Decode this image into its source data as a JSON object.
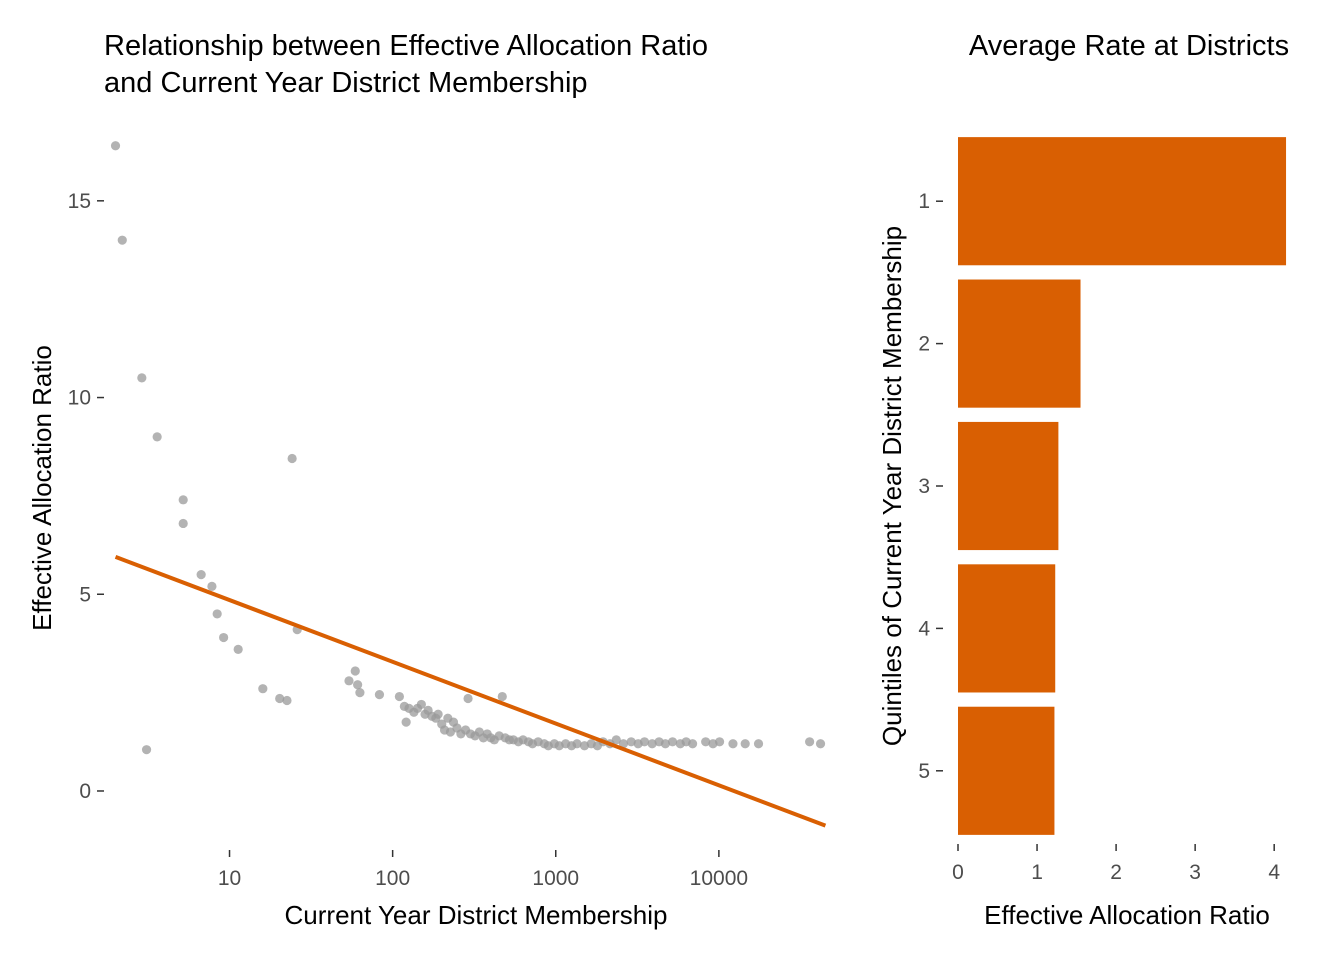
{
  "chart_data": [
    {
      "type": "scatter",
      "title_lines": [
        "Relationship between Effective Allocation Ratio",
        "and Current Year District Membership"
      ],
      "xlabel": "Current Year District Membership",
      "ylabel": "Effective Allocation Ratio",
      "x_scale": "log10",
      "xlim": [
        1.7,
        48000
      ],
      "ylim": [
        -1.5,
        16.8
      ],
      "x_ticks": [
        10,
        100,
        1000,
        10000
      ],
      "x_tick_labels": [
        "10",
        "100",
        "1000",
        "10000"
      ],
      "y_ticks": [
        0,
        5,
        10,
        15
      ],
      "y_tick_labels": [
        "0",
        "5",
        "10",
        "15"
      ],
      "grid": false,
      "point_color": "#999999",
      "line_color": "#D95F02",
      "trend_line": {
        "x": [
          2,
          45000
        ],
        "y": [
          5.95,
          -0.88
        ]
      },
      "points": [
        [
          2,
          16.4
        ],
        [
          2.2,
          14
        ],
        [
          2.9,
          10.5
        ],
        [
          3.6,
          9
        ],
        [
          3.1,
          1.05
        ],
        [
          5.2,
          7.4
        ],
        [
          5.2,
          6.8
        ],
        [
          6.7,
          5.5
        ],
        [
          7.8,
          5.2
        ],
        [
          8.4,
          4.5
        ],
        [
          9.2,
          3.9
        ],
        [
          11.3,
          3.6
        ],
        [
          16,
          2.6
        ],
        [
          20.3,
          2.35
        ],
        [
          22.5,
          2.3
        ],
        [
          24.2,
          8.45
        ],
        [
          26,
          4.1
        ],
        [
          54,
          2.8
        ],
        [
          59,
          3.05
        ],
        [
          61,
          2.7
        ],
        [
          63,
          2.5
        ],
        [
          83,
          2.45
        ],
        [
          110,
          2.4
        ],
        [
          118,
          2.15
        ],
        [
          121,
          1.75
        ],
        [
          126,
          2.1
        ],
        [
          135,
          2.0
        ],
        [
          142,
          2.1
        ],
        [
          150,
          2.2
        ],
        [
          158,
          1.95
        ],
        [
          165,
          2.05
        ],
        [
          174,
          1.9
        ],
        [
          184,
          1.85
        ],
        [
          190,
          1.95
        ],
        [
          200,
          1.7
        ],
        [
          208,
          1.55
        ],
        [
          218,
          1.85
        ],
        [
          226,
          1.5
        ],
        [
          236,
          1.75
        ],
        [
          248,
          1.6
        ],
        [
          262,
          1.45
        ],
        [
          280,
          1.55
        ],
        [
          290,
          2.35
        ],
        [
          300,
          1.45
        ],
        [
          320,
          1.4
        ],
        [
          340,
          1.5
        ],
        [
          360,
          1.35
        ],
        [
          380,
          1.45
        ],
        [
          400,
          1.35
        ],
        [
          420,
          1.3
        ],
        [
          450,
          1.4
        ],
        [
          470,
          2.4
        ],
        [
          490,
          1.35
        ],
        [
          520,
          1.3
        ],
        [
          550,
          1.3
        ],
        [
          590,
          1.25
        ],
        [
          630,
          1.3
        ],
        [
          680,
          1.25
        ],
        [
          720,
          1.2
        ],
        [
          780,
          1.25
        ],
        [
          850,
          1.2
        ],
        [
          900,
          1.15
        ],
        [
          980,
          1.2
        ],
        [
          1050,
          1.15
        ],
        [
          1150,
          1.2
        ],
        [
          1250,
          1.15
        ],
        [
          1350,
          1.2
        ],
        [
          1500,
          1.15
        ],
        [
          1650,
          1.2
        ],
        [
          1800,
          1.15
        ],
        [
          1950,
          1.25
        ],
        [
          2150,
          1.2
        ],
        [
          2350,
          1.3
        ],
        [
          2600,
          1.2
        ],
        [
          2900,
          1.25
        ],
        [
          3200,
          1.2
        ],
        [
          3500,
          1.25
        ],
        [
          3900,
          1.2
        ],
        [
          4300,
          1.25
        ],
        [
          4700,
          1.2
        ],
        [
          5200,
          1.25
        ],
        [
          5800,
          1.2
        ],
        [
          6300,
          1.25
        ],
        [
          6900,
          1.2
        ],
        [
          8300,
          1.25
        ],
        [
          9200,
          1.2
        ],
        [
          10100,
          1.25
        ],
        [
          12200,
          1.2
        ],
        [
          14500,
          1.2
        ],
        [
          17500,
          1.2
        ],
        [
          36000,
          1.25
        ],
        [
          42000,
          1.2
        ]
      ]
    },
    {
      "type": "bar",
      "orientation": "horizontal",
      "title": "Average Rate at Districts",
      "xlabel": "Effective Allocation Ratio",
      "ylabel": "Quintiles of Current Year District Membership",
      "categories": [
        "1",
        "2",
        "3",
        "4",
        "5"
      ],
      "values": [
        4.15,
        1.55,
        1.27,
        1.23,
        1.22
      ],
      "xlim": [
        0,
        4.2
      ],
      "x_ticks": [
        0,
        1,
        2,
        3,
        4
      ],
      "x_tick_labels": [
        "0",
        "1",
        "2",
        "3",
        "4"
      ],
      "grid": false,
      "bar_color": "#D95F02"
    }
  ]
}
